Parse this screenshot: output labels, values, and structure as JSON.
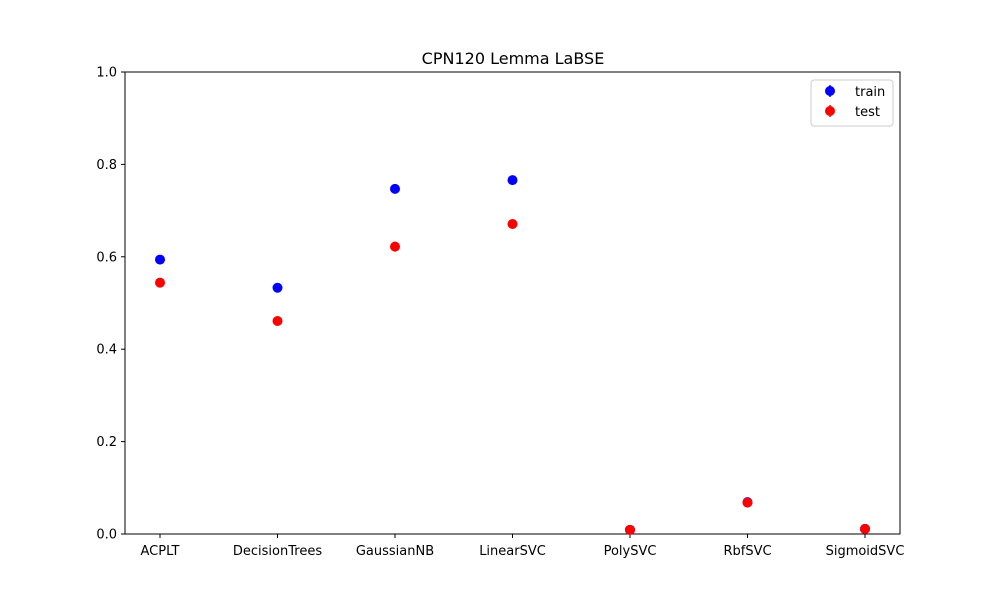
{
  "chart_data": {
    "type": "scatter",
    "title": "CPN120 Lemma LaBSE",
    "xlabel": "",
    "ylabel": "",
    "categories": [
      "ACPLT",
      "DecisionTrees",
      "GaussianNB",
      "LinearSVC",
      "PolySVC",
      "RbfSVC",
      "SigmoidSVC"
    ],
    "ylim": [
      0,
      1.0
    ],
    "yticks": [
      "0.0",
      "0.2",
      "0.4",
      "0.6",
      "0.8",
      "1.0"
    ],
    "grid": false,
    "legend_position": "top-right",
    "series": [
      {
        "name": "train",
        "color": "#0000ff",
        "values": [
          0.594,
          0.533,
          0.747,
          0.766,
          0.009,
          0.069,
          0.011
        ],
        "errors": [
          0.004,
          0.004,
          0.005,
          0.004,
          0.002,
          0.004,
          0.002
        ]
      },
      {
        "name": "test",
        "color": "#ff0000",
        "values": [
          0.544,
          0.461,
          0.622,
          0.671,
          0.009,
          0.068,
          0.011
        ],
        "errors": [
          0.004,
          0.004,
          0.011,
          0.005,
          0.002,
          0.005,
          0.003
        ]
      }
    ]
  }
}
